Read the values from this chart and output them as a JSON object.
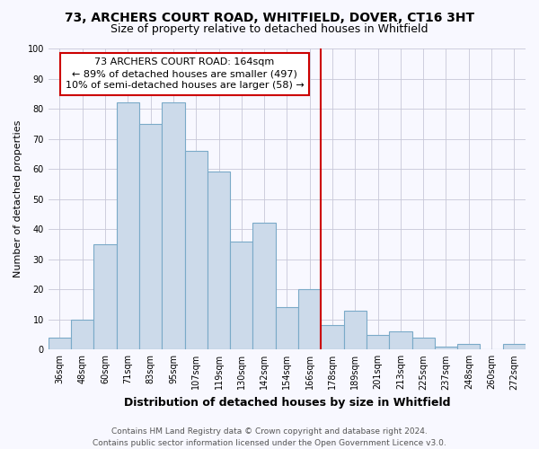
{
  "title1": "73, ARCHERS COURT ROAD, WHITFIELD, DOVER, CT16 3HT",
  "title2": "Size of property relative to detached houses in Whitfield",
  "xlabel": "Distribution of detached houses by size in Whitfield",
  "ylabel": "Number of detached properties",
  "bin_labels": [
    "36sqm",
    "48sqm",
    "60sqm",
    "71sqm",
    "83sqm",
    "95sqm",
    "107sqm",
    "119sqm",
    "130sqm",
    "142sqm",
    "154sqm",
    "166sqm",
    "178sqm",
    "189sqm",
    "201sqm",
    "213sqm",
    "225sqm",
    "237sqm",
    "248sqm",
    "260sqm",
    "272sqm"
  ],
  "bar_heights": [
    4,
    10,
    35,
    82,
    75,
    82,
    66,
    59,
    36,
    42,
    14,
    20,
    8,
    13,
    5,
    6,
    4,
    1,
    2,
    0,
    2
  ],
  "bar_color": "#ccdaea",
  "bar_edgecolor": "#7aaac8",
  "vline_color": "#cc0000",
  "annotation_line1": "73 ARCHERS COURT ROAD: 164sqm",
  "annotation_line2": "← 89% of detached houses are smaller (497)",
  "annotation_line3": "10% of semi-detached houses are larger (58) →",
  "ylim": [
    0,
    100
  ],
  "yticks": [
    0,
    10,
    20,
    30,
    40,
    50,
    60,
    70,
    80,
    90,
    100
  ],
  "footer": "Contains HM Land Registry data © Crown copyright and database right 2024.\nContains public sector information licensed under the Open Government Licence v3.0.",
  "background_color": "#f8f8ff",
  "grid_color": "#c8c8d8",
  "title_fontsize": 10,
  "subtitle_fontsize": 9,
  "ylabel_fontsize": 8,
  "xlabel_fontsize": 9,
  "tick_fontsize": 7,
  "ann_fontsize": 8,
  "footer_fontsize": 6.5
}
